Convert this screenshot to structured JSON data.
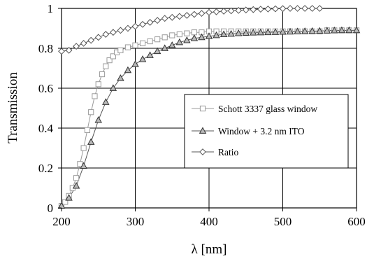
{
  "chart_data": {
    "type": "line",
    "title": "",
    "xlabel": "λ [nm]",
    "ylabel": "Transmission",
    "xlim": [
      200,
      600
    ],
    "ylim": [
      0,
      1
    ],
    "x_ticks": [
      200,
      300,
      400,
      500,
      600
    ],
    "y_ticks": [
      0,
      0.2,
      0.4,
      0.6,
      0.8,
      1
    ],
    "x_tick_labels": [
      "200",
      "300",
      "400",
      "500",
      "600"
    ],
    "y_tick_labels": [
      "0",
      "0.2",
      "0.4",
      "0.6",
      "0.8",
      "1"
    ],
    "grid": true,
    "legend_position": "center-right",
    "series": [
      {
        "name": "Schott 3337 glass window",
        "marker": "square",
        "color": "#9a9a9a",
        "x": [
          200,
          205,
          210,
          215,
          220,
          225,
          230,
          235,
          240,
          245,
          250,
          255,
          260,
          265,
          270,
          275,
          280,
          290,
          300,
          310,
          320,
          330,
          340,
          350,
          360,
          370,
          380,
          390,
          400,
          410,
          420,
          430,
          440,
          450,
          460,
          470,
          480,
          490,
          500,
          510,
          520,
          530,
          540,
          550,
          560,
          570,
          580,
          590,
          600
        ],
        "y": [
          0.01,
          0.03,
          0.06,
          0.1,
          0.15,
          0.22,
          0.3,
          0.39,
          0.48,
          0.56,
          0.62,
          0.67,
          0.71,
          0.74,
          0.76,
          0.78,
          0.79,
          0.805,
          0.815,
          0.825,
          0.835,
          0.845,
          0.855,
          0.865,
          0.87,
          0.875,
          0.88,
          0.88,
          0.885,
          0.885,
          0.885,
          0.885,
          0.885,
          0.885,
          0.885,
          0.885,
          0.885,
          0.885,
          0.885,
          0.885,
          0.885,
          0.885,
          0.885,
          0.885,
          0.89,
          0.89,
          0.89,
          0.89,
          0.89
        ]
      },
      {
        "name": "Window + 3.2 nm ITO",
        "marker": "triangle",
        "color": "#555555",
        "x": [
          200,
          210,
          220,
          230,
          240,
          250,
          260,
          270,
          280,
          290,
          300,
          310,
          320,
          330,
          340,
          350,
          360,
          370,
          380,
          390,
          400,
          410,
          420,
          430,
          440,
          450,
          460,
          470,
          480,
          490,
          500,
          510,
          520,
          530,
          540,
          550,
          560,
          570,
          580,
          590,
          600
        ],
        "y": [
          0.01,
          0.05,
          0.11,
          0.21,
          0.33,
          0.44,
          0.53,
          0.6,
          0.65,
          0.69,
          0.72,
          0.745,
          0.765,
          0.785,
          0.8,
          0.815,
          0.83,
          0.84,
          0.85,
          0.855,
          0.86,
          0.865,
          0.87,
          0.872,
          0.875,
          0.877,
          0.878,
          0.879,
          0.88,
          0.881,
          0.882,
          0.883,
          0.884,
          0.885,
          0.886,
          0.887,
          0.888,
          0.889,
          0.89,
          0.89,
          0.89
        ]
      },
      {
        "name": "Ratio",
        "marker": "diamond",
        "color": "#555555",
        "x": [
          200,
          210,
          220,
          230,
          240,
          250,
          260,
          270,
          280,
          290,
          300,
          310,
          320,
          330,
          340,
          350,
          360,
          370,
          380,
          390,
          400,
          410,
          420,
          430,
          440,
          450,
          460,
          470,
          480,
          490,
          500,
          510,
          520,
          530,
          540,
          550
        ],
        "y": [
          0.785,
          0.79,
          0.81,
          0.825,
          0.84,
          0.855,
          0.87,
          0.88,
          0.89,
          0.9,
          0.91,
          0.92,
          0.93,
          0.94,
          0.95,
          0.955,
          0.96,
          0.965,
          0.97,
          0.975,
          0.98,
          0.983,
          0.986,
          0.988,
          0.99,
          0.992,
          0.994,
          0.996,
          0.997,
          0.998,
          0.999,
          1.0,
          1.0,
          1.0,
          1.0,
          1.0
        ]
      }
    ]
  }
}
